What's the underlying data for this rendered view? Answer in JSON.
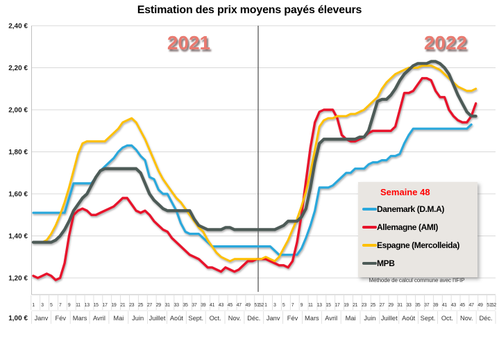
{
  "title": "Estimation des prix moyens payés éleveurs",
  "note": "Méthode de calcul commune avec l'IFIP",
  "year_labels": [
    "2021",
    "2022"
  ],
  "colors": {
    "gridline": "#D9D9D9",
    "axis_line": "#BFBFBF",
    "divider": "#4a4a4a",
    "year_label": "#E97A70",
    "legend_background": "#E9E6E2",
    "legend_header": "#FF0000",
    "danemark": "#29A8DC",
    "allemagne": "#E8132B",
    "espagne": "#FFC000",
    "mpb": "#4D5B57"
  },
  "chart_data": {
    "type": "line",
    "title": "Estimation des prix moyens payés éleveurs",
    "week_label": "Semaine 48",
    "x_axis": {
      "unit": "semaine",
      "years": [
        "2021",
        "2022"
      ],
      "weeks_per_year": 52,
      "week_tick_labels": [
        "1",
        "3",
        "5",
        "7",
        "9",
        "11",
        "13",
        "15",
        "17",
        "19",
        "21",
        "23",
        "25",
        "27",
        "29",
        "31",
        "33",
        "35",
        "37",
        "39",
        "41",
        "43",
        "45",
        "47",
        "49",
        "51",
        "52"
      ],
      "month_labels": [
        "Janv",
        "Fév",
        "Mars",
        "Avril",
        "Mai",
        "Juin",
        "Juillet",
        "Août",
        "Sept.",
        "Oct.",
        "Nov.",
        "Déc."
      ]
    },
    "y_axis": {
      "unit": "€",
      "min": 1.0,
      "max": 2.4,
      "step": 0.2,
      "tick_labels": [
        "2,40 €",
        "2,20 €",
        "2,00 €",
        "1,80 €",
        "1,60 €",
        "1,40 €",
        "1,20 €",
        "1,00 €"
      ],
      "tick_values": [
        2.4,
        2.2,
        2.0,
        1.8,
        1.6,
        1.4,
        1.2,
        1.0
      ]
    },
    "grid": "horizontal",
    "legend_position": "right-middle",
    "series": [
      {
        "name": "Danemark (D.M.A)",
        "color": "#29A8DC",
        "values": [
          1.51,
          1.51,
          1.51,
          1.51,
          1.51,
          1.51,
          1.51,
          1.51,
          1.58,
          1.65,
          1.65,
          1.65,
          1.65,
          1.65,
          1.68,
          1.71,
          1.73,
          1.75,
          1.77,
          1.8,
          1.82,
          1.83,
          1.83,
          1.81,
          1.78,
          1.76,
          1.68,
          1.67,
          1.62,
          1.6,
          1.6,
          1.56,
          1.52,
          1.46,
          1.42,
          1.41,
          1.41,
          1.41,
          1.39,
          1.37,
          1.35,
          1.35,
          1.35,
          1.35,
          1.35,
          1.35,
          1.35,
          1.35,
          1.35,
          1.35,
          1.35,
          1.35,
          1.35,
          1.35,
          1.33,
          1.31,
          1.31,
          1.31,
          1.31,
          1.31,
          1.34,
          1.39,
          1.45,
          1.52,
          1.63,
          1.63,
          1.63,
          1.64,
          1.66,
          1.68,
          1.7,
          1.7,
          1.72,
          1.72,
          1.72,
          1.74,
          1.75,
          1.75,
          1.76,
          1.76,
          1.78,
          1.78,
          1.79,
          1.84,
          1.88,
          1.91,
          1.91,
          1.91,
          1.91,
          1.91,
          1.91,
          1.91,
          1.91,
          1.91,
          1.91,
          1.91,
          1.91,
          1.91,
          1.93,
          null,
          null,
          null,
          null
        ]
      },
      {
        "name": "Allemagne (AMI)",
        "color": "#E8132B",
        "values": [
          1.21,
          1.2,
          1.21,
          1.22,
          1.21,
          1.19,
          1.2,
          1.27,
          1.4,
          1.5,
          1.52,
          1.53,
          1.52,
          1.5,
          1.5,
          1.51,
          1.52,
          1.53,
          1.54,
          1.56,
          1.58,
          1.58,
          1.55,
          1.52,
          1.51,
          1.52,
          1.5,
          1.47,
          1.45,
          1.43,
          1.42,
          1.39,
          1.37,
          1.35,
          1.33,
          1.31,
          1.3,
          1.29,
          1.27,
          1.25,
          1.25,
          1.24,
          1.23,
          1.25,
          1.24,
          1.23,
          1.24,
          1.26,
          1.28,
          1.28,
          1.29,
          1.29,
          1.29,
          1.28,
          1.27,
          1.26,
          1.26,
          1.25,
          1.28,
          1.37,
          1.5,
          1.66,
          1.82,
          1.94,
          1.99,
          2.0,
          2.0,
          2.0,
          1.96,
          1.88,
          1.86,
          1.85,
          1.85,
          1.86,
          1.87,
          1.89,
          1.9,
          1.9,
          1.9,
          1.9,
          1.9,
          1.92,
          2.0,
          2.08,
          2.08,
          2.09,
          2.12,
          2.15,
          2.15,
          2.14,
          2.09,
          2.06,
          2.06,
          2.0,
          1.97,
          1.95,
          1.94,
          1.94,
          1.97,
          2.03,
          null,
          null,
          null,
          null
        ]
      },
      {
        "name": "Espagne (Mercolleida)",
        "color": "#FFC000",
        "values": [
          1.37,
          1.37,
          1.37,
          1.38,
          1.41,
          1.45,
          1.5,
          1.56,
          1.63,
          1.71,
          1.79,
          1.84,
          1.85,
          1.85,
          1.85,
          1.85,
          1.85,
          1.87,
          1.89,
          1.91,
          1.94,
          1.95,
          1.96,
          1.94,
          1.9,
          1.86,
          1.81,
          1.76,
          1.71,
          1.67,
          1.64,
          1.61,
          1.58,
          1.56,
          1.53,
          1.5,
          1.47,
          1.44,
          1.42,
          1.38,
          1.35,
          1.32,
          1.3,
          1.29,
          1.28,
          1.29,
          1.29,
          1.29,
          1.29,
          1.29,
          1.29,
          1.29,
          1.3,
          1.29,
          1.28,
          1.3,
          1.34,
          1.38,
          1.43,
          1.48,
          1.54,
          1.61,
          1.7,
          1.81,
          1.92,
          1.95,
          1.96,
          1.96,
          1.97,
          1.97,
          1.97,
          1.98,
          1.98,
          1.99,
          2.0,
          2.02,
          2.04,
          2.06,
          2.1,
          2.13,
          2.15,
          2.17,
          2.18,
          2.19,
          2.2,
          2.2,
          2.2,
          2.21,
          2.21,
          2.21,
          2.2,
          2.19,
          2.17,
          2.15,
          2.13,
          2.11,
          2.1,
          2.09,
          2.09,
          2.1,
          null,
          null,
          null,
          null
        ]
      },
      {
        "name": "MPB",
        "color": "#4D5B57",
        "values": [
          1.37,
          1.37,
          1.37,
          1.37,
          1.37,
          1.38,
          1.4,
          1.43,
          1.47,
          1.52,
          1.55,
          1.58,
          1.6,
          1.64,
          1.68,
          1.71,
          1.72,
          1.72,
          1.72,
          1.72,
          1.72,
          1.72,
          1.72,
          1.72,
          1.7,
          1.65,
          1.6,
          1.57,
          1.55,
          1.53,
          1.52,
          1.52,
          1.52,
          1.52,
          1.52,
          1.52,
          1.48,
          1.45,
          1.44,
          1.43,
          1.43,
          1.43,
          1.43,
          1.44,
          1.44,
          1.43,
          1.43,
          1.43,
          1.43,
          1.43,
          1.43,
          1.43,
          1.43,
          1.43,
          1.43,
          1.44,
          1.45,
          1.47,
          1.47,
          1.47,
          1.49,
          1.53,
          1.63,
          1.75,
          1.84,
          1.86,
          1.86,
          1.86,
          1.86,
          1.86,
          1.86,
          1.86,
          1.86,
          1.87,
          1.87,
          1.9,
          1.97,
          2.04,
          2.05,
          2.05,
          2.07,
          2.1,
          2.14,
          2.17,
          2.19,
          2.21,
          2.22,
          2.22,
          2.22,
          2.23,
          2.23,
          2.22,
          2.2,
          2.17,
          2.12,
          2.07,
          2.03,
          1.99,
          1.97,
          1.97,
          null,
          null,
          null,
          null
        ]
      }
    ]
  }
}
